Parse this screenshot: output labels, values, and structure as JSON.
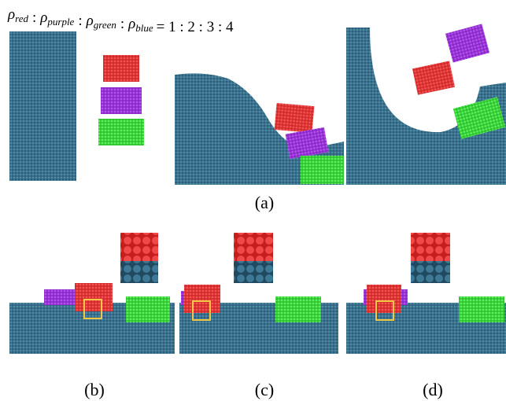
{
  "formula": {
    "terms": [
      {
        "symbol": "ρ",
        "subscript": "red"
      },
      {
        "symbol": "ρ",
        "subscript": "purple"
      },
      {
        "symbol": "ρ",
        "subscript": "green"
      },
      {
        "symbol": "ρ",
        "subscript": "blue"
      }
    ],
    "separator": ":",
    "rhs": "= 1 : 2 : 3 : 4"
  },
  "panels": [
    {
      "label": "(a)"
    },
    {
      "label": "(b)"
    },
    {
      "label": "(c)"
    },
    {
      "label": "(d)"
    }
  ]
}
